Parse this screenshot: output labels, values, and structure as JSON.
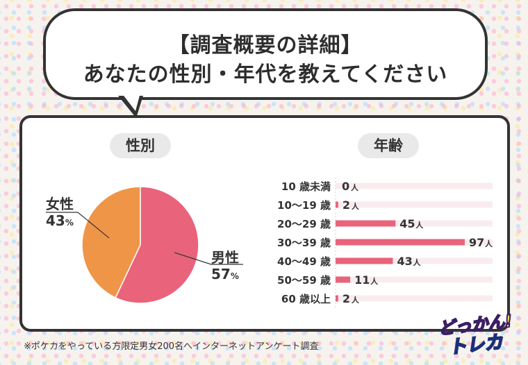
{
  "headline": {
    "line1": "【調査概要の詳細】",
    "line2": "あなたの性別・年代を教えてください"
  },
  "gender_section": {
    "title": "性別"
  },
  "age_section": {
    "title": "年齢"
  },
  "unit": "人",
  "footnote": "※ポケカをやっている方限定男女200名へインターネットアンケート調査",
  "logo": {
    "line1": "どっかん!",
    "line2": "トレカ"
  },
  "colors": {
    "male": "#e9637a",
    "female": "#ef9547",
    "bar": "#e9637a",
    "track": "#f3d9dd"
  },
  "chart_data": [
    {
      "type": "pie",
      "title": "性別",
      "slices": [
        {
          "label": "男性",
          "value": 57,
          "display": "57"
        },
        {
          "label": "女性",
          "value": 43,
          "display": "43"
        }
      ],
      "unit": "%"
    },
    {
      "type": "bar",
      "title": "年齢",
      "orientation": "horizontal",
      "categories": [
        "10 歳未満",
        "10〜19 歳",
        "20〜29 歳",
        "30〜39 歳",
        "40〜49 歳",
        "50〜59 歳",
        "60 歳以上"
      ],
      "values": [
        0,
        2,
        45,
        97,
        43,
        11,
        2
      ],
      "unit": "人",
      "xlim": [
        0,
        97
      ]
    }
  ]
}
